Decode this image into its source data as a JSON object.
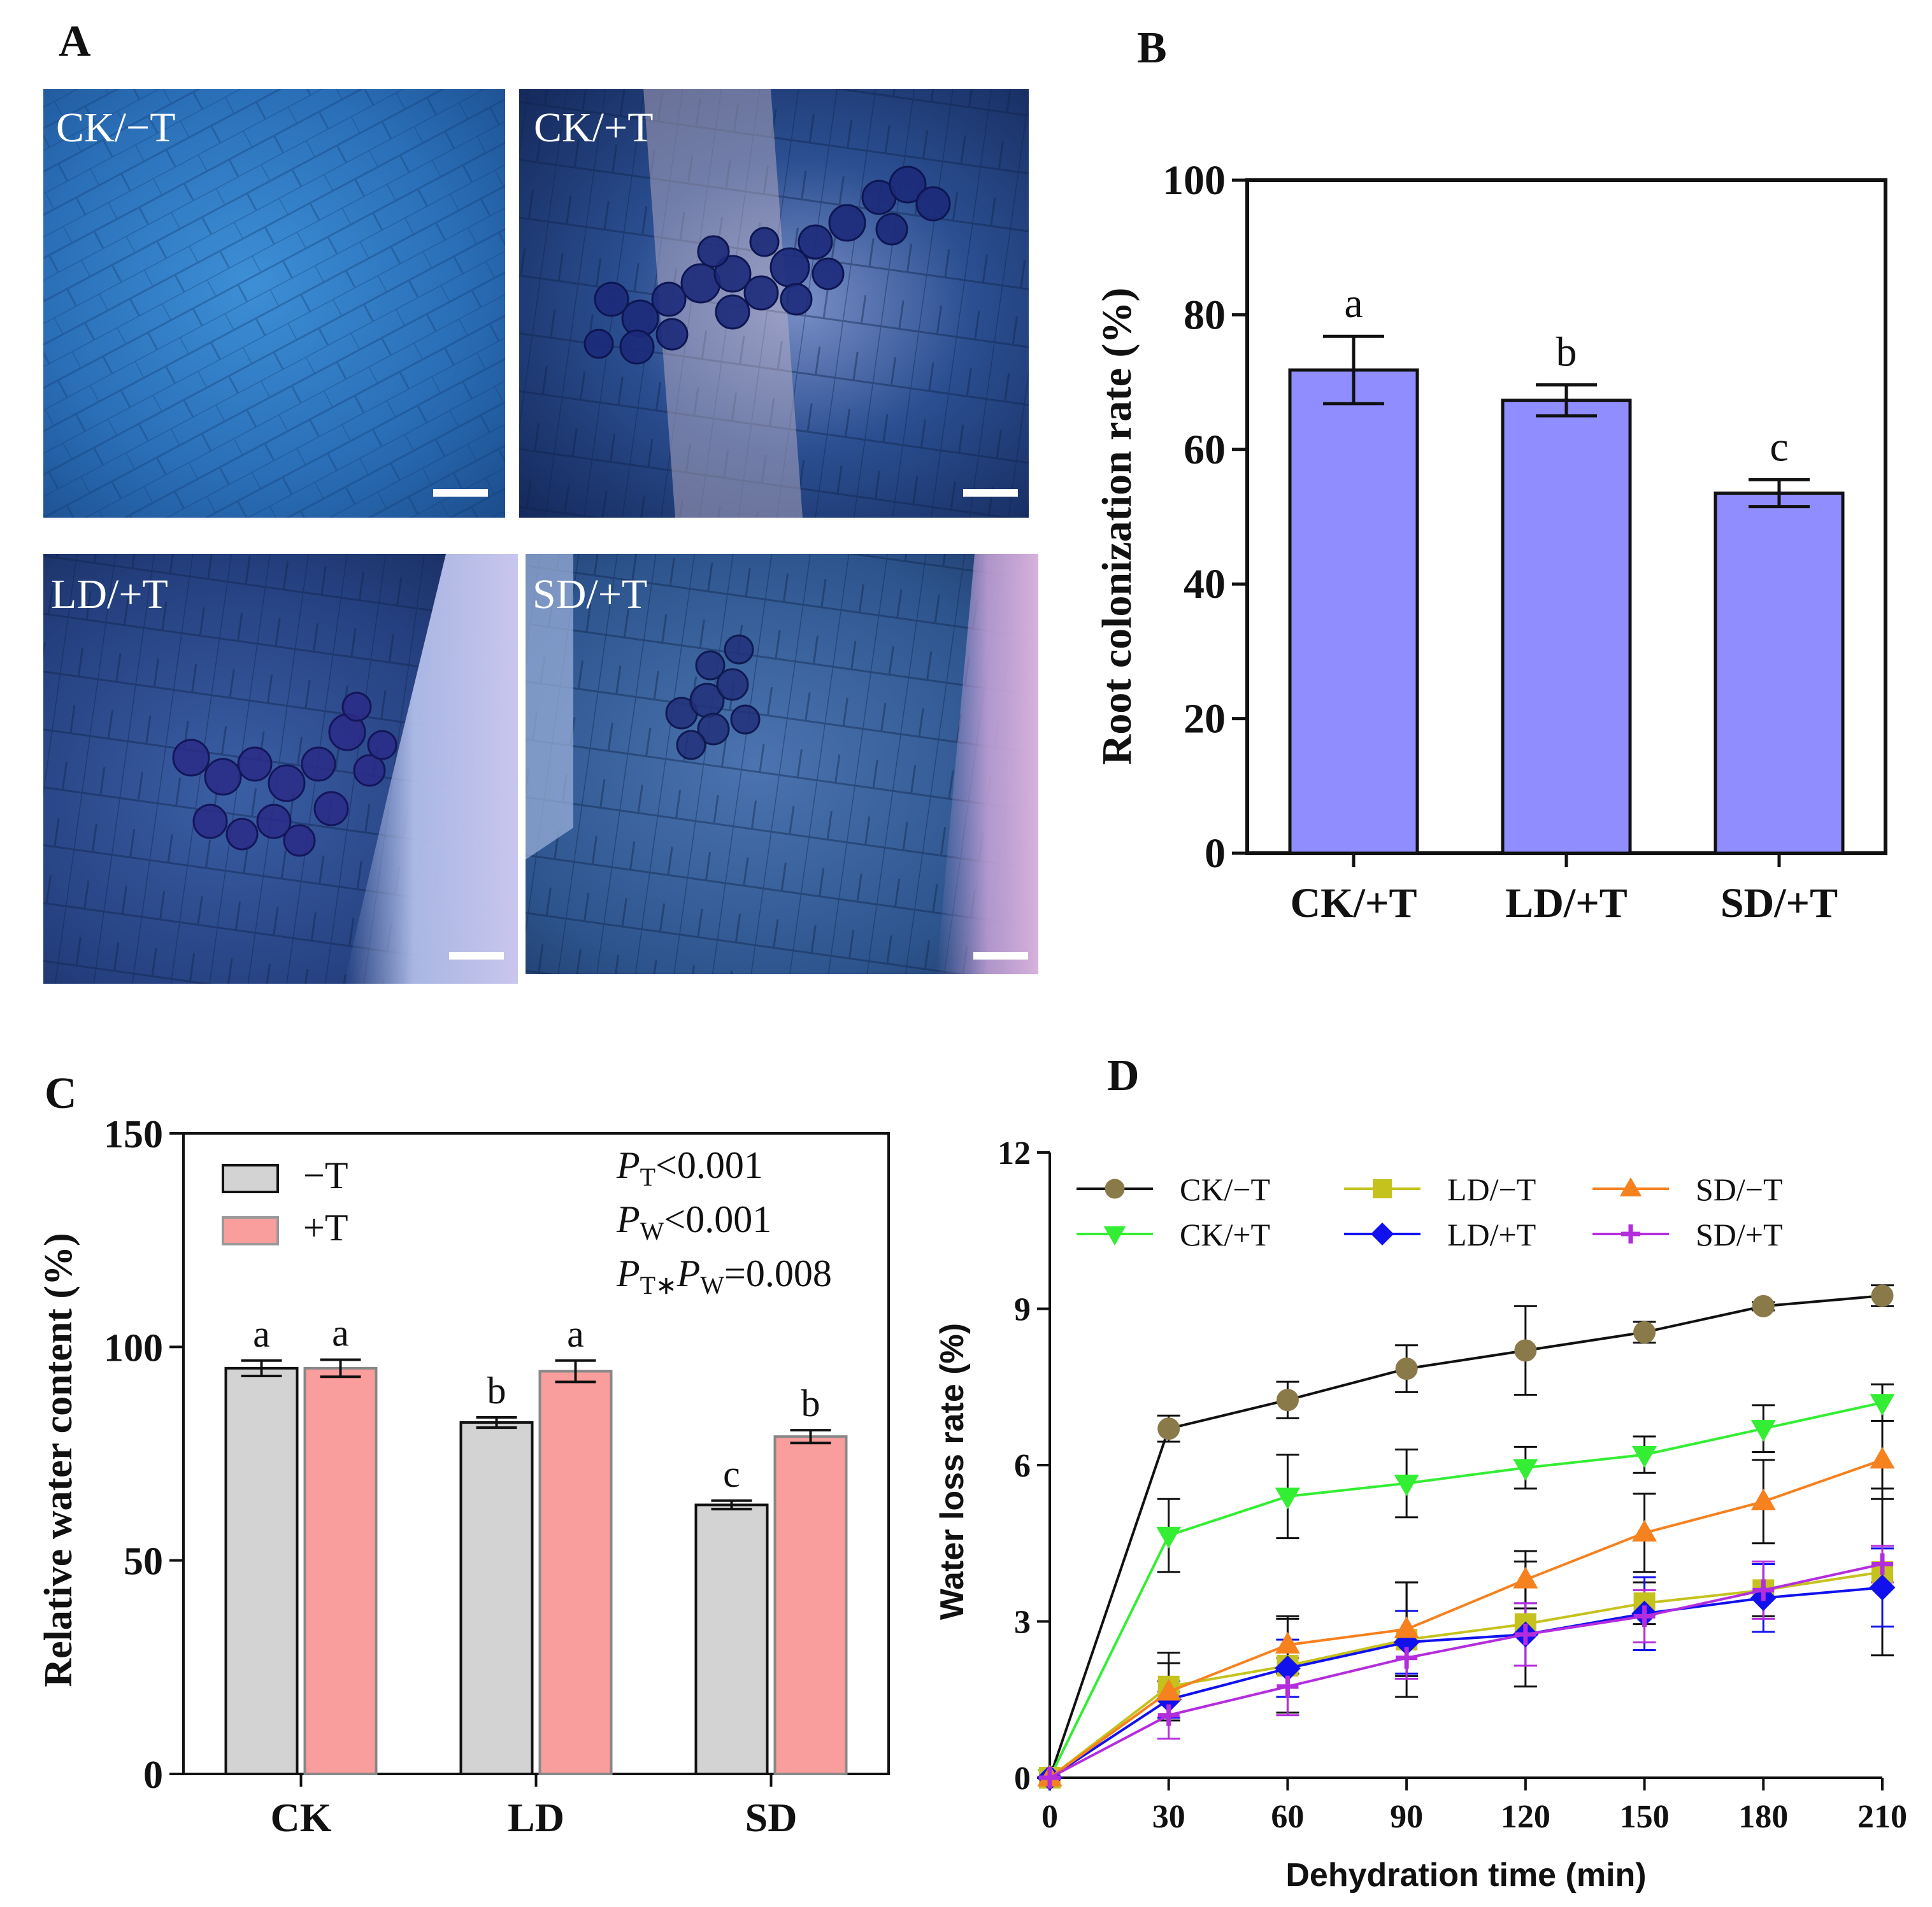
{
  "panels": {
    "A": {
      "letter": "A",
      "micrographs": [
        {
          "label": "CK/−T"
        },
        {
          "label": "CK/+T"
        },
        {
          "label": "LD/+T"
        },
        {
          "label": "SD/+T"
        }
      ]
    },
    "B": {
      "letter": "B"
    },
    "C": {
      "letter": "C",
      "stats": [
        {
          "p": "P",
          "sub": "T",
          "rest": "<0.001"
        },
        {
          "p": "P",
          "sub": "W",
          "rest": "<0.001"
        },
        {
          "p": "P",
          "sub": "T∗",
          "p2": "P",
          "sub2": "W",
          "rest": "=0.008"
        }
      ]
    },
    "D": {
      "letter": "D"
    }
  },
  "colors": {
    "b_bar": "#8f8dff",
    "c_minus": "#d3d3d3",
    "c_plus": "#fa9d9d",
    "d_ck_minus": "#8a7a49",
    "d_ck_plus": "#33ee33",
    "d_ld_minus": "#c5c21e",
    "d_ld_plus": "#1111ee",
    "d_sd_minus": "#f5811f",
    "d_sd_plus": "#b42ddd"
  },
  "chart_data": [
    {
      "panel": "B",
      "type": "bar",
      "categories": [
        "CK/+T",
        "LD/+T",
        "SD/+T"
      ],
      "values": [
        71.8,
        67.3,
        53.5
      ],
      "errors": [
        5.0,
        2.3,
        2.0
      ],
      "letters": [
        "a",
        "b",
        "c"
      ],
      "ylabel": "Root colonization rate (%)",
      "ylim": [
        0,
        100
      ],
      "yticks": [
        0,
        20,
        40,
        60,
        80,
        100
      ]
    },
    {
      "panel": "C",
      "type": "bar",
      "categories": [
        "CK",
        "LD",
        "SD"
      ],
      "series": [
        {
          "name": "−T",
          "values": [
            95.0,
            82.3,
            63.0
          ],
          "errors": [
            1.8,
            1.2,
            1.0
          ],
          "letters": [
            "a",
            "b",
            "c"
          ]
        },
        {
          "name": "+T",
          "values": [
            95.0,
            94.3,
            79.0
          ],
          "errors": [
            2.0,
            2.5,
            1.5
          ],
          "letters": [
            "a",
            "a",
            "b"
          ]
        }
      ],
      "ylabel": "Relative water content (%)",
      "ylim": [
        0,
        150
      ],
      "yticks": [
        0,
        50,
        100,
        150
      ],
      "legend": "top-left"
    },
    {
      "panel": "D",
      "type": "line",
      "x": [
        0,
        30,
        60,
        90,
        120,
        150,
        180,
        210
      ],
      "xticks": [
        0,
        30,
        60,
        90,
        120,
        150,
        180,
        210
      ],
      "series": [
        {
          "name": "CK/−T",
          "marker": "circle",
          "values": [
            0,
            6.7,
            7.25,
            7.85,
            8.2,
            8.55,
            9.05,
            9.25
          ],
          "errors": [
            0,
            0.25,
            0.35,
            0.45,
            0.85,
            0.2,
            0.08,
            0.2
          ]
        },
        {
          "name": "CK/+T",
          "marker": "triangle-down",
          "values": [
            0,
            4.65,
            5.4,
            5.65,
            5.95,
            6.2,
            6.7,
            7.2
          ],
          "errors": [
            0,
            0.7,
            0.8,
            0.65,
            0.4,
            0.35,
            0.45,
            0.35
          ]
        },
        {
          "name": "LD/−T",
          "marker": "square",
          "values": [
            0,
            1.75,
            2.15,
            2.65,
            2.95,
            3.35,
            3.6,
            3.95
          ],
          "errors": [
            0,
            0.65,
            0.9,
            1.1,
            1.2,
            0.4,
            0.5,
            1.6
          ]
        },
        {
          "name": "LD/+T",
          "marker": "diamond",
          "values": [
            0,
            1.5,
            2.1,
            2.6,
            2.75,
            3.15,
            3.45,
            3.65
          ],
          "errors": [
            0,
            0.35,
            0.55,
            0.6,
            0.6,
            0.7,
            0.65,
            0.75
          ]
        },
        {
          "name": "SD/−T",
          "marker": "triangle-up",
          "values": [
            0,
            1.65,
            2.55,
            2.85,
            3.8,
            4.7,
            5.3,
            6.1
          ],
          "errors": [
            0,
            0.55,
            0.55,
            0.9,
            0.55,
            0.75,
            0.8,
            0.75
          ]
        },
        {
          "name": "SD/+T",
          "marker": "plus",
          "values": [
            0,
            1.2,
            1.75,
            2.3,
            2.75,
            3.1,
            3.6,
            4.1
          ],
          "errors": [
            0,
            0.45,
            0.55,
            0.4,
            0.6,
            0.5,
            0.55,
            0.35
          ]
        }
      ],
      "xlabel": "Dehydration time (min)",
      "ylabel": "Water loss rate  (%)",
      "xlim": [
        0,
        210
      ],
      "ylim": [
        0,
        12
      ],
      "yticks": [
        0,
        3,
        6,
        9,
        12
      ],
      "legend": "top"
    }
  ]
}
